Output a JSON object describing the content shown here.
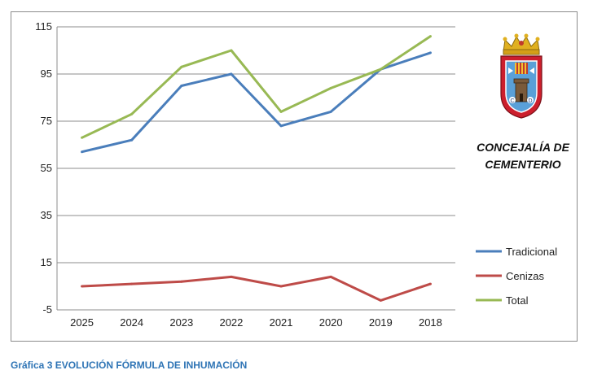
{
  "caption": "Gráfica 3 EVOLUCIÓN FÓRMULA DE INHUMACIÓN",
  "organization": {
    "line1": "CONCEJALÍA DE",
    "line2": "CEMENTERIO",
    "emblem": "city-coat-of-arms"
  },
  "chart_data": {
    "type": "line",
    "categories": [
      "2025",
      "2024",
      "2023",
      "2022",
      "2021",
      "2020",
      "2019",
      "2018"
    ],
    "series": [
      {
        "name": "Tradicional",
        "color": "#4a7ebb",
        "values": [
          62,
          67,
          90,
          95,
          73,
          79,
          97,
          104
        ]
      },
      {
        "name": "Cenizas",
        "color": "#be4b48",
        "values": [
          5,
          6,
          7,
          9,
          5,
          9,
          -1,
          6
        ]
      },
      {
        "name": "Total",
        "color": "#98b954",
        "values": [
          68,
          78,
          98,
          105,
          79,
          89,
          97,
          111
        ]
      }
    ],
    "y_ticks": [
      "115",
      "95",
      "75",
      "55",
      "35",
      "15",
      "-5"
    ],
    "ylim": [
      -5,
      115
    ],
    "grid": true,
    "legend_position": "right"
  }
}
